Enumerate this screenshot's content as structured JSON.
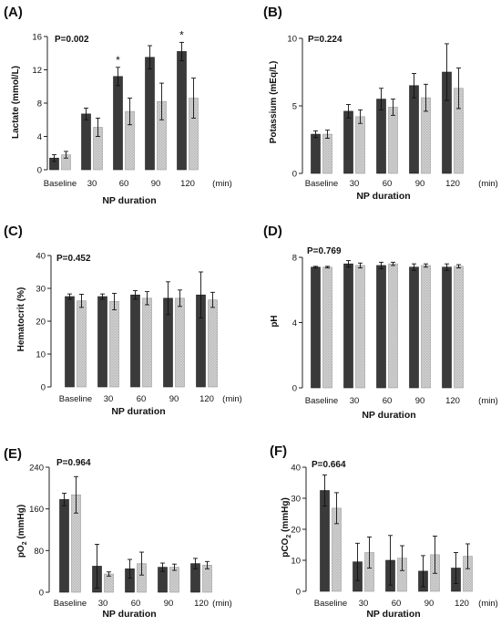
{
  "figure": {
    "background": "#ffffff"
  },
  "colors": {
    "control": "#3a3a3a",
    "treatment": "#cfcfcf",
    "axis": "#222222"
  },
  "chart_data": [
    {
      "panel": "(A)",
      "type": "bar",
      "categories": [
        "Baseline",
        "30",
        "60",
        "90",
        "120"
      ],
      "unit_label": "(min)",
      "xlabel": "NP duration",
      "ylabel": "Lactate (mmol/L)",
      "ylim": [
        0,
        16
      ],
      "yticks": [
        0,
        4,
        8,
        12,
        16
      ],
      "p_value": "P=0.002",
      "series": [
        {
          "values": [
            1.4,
            6.7,
            11.2,
            13.5,
            14.2
          ],
          "errors": [
            0.4,
            0.7,
            1.1,
            1.4,
            1.1
          ]
        },
        {
          "values": [
            1.8,
            5.1,
            7.0,
            8.2,
            8.6
          ],
          "errors": [
            0.4,
            1.1,
            1.6,
            2.2,
            2.4
          ]
        }
      ],
      "significance": [
        {
          "category": "60",
          "mark": "*"
        },
        {
          "category": "120",
          "mark": "*"
        }
      ]
    },
    {
      "panel": "(B)",
      "type": "bar",
      "categories": [
        "Baseline",
        "30",
        "60",
        "90",
        "120"
      ],
      "unit_label": "(min)",
      "xlabel": "NP duration",
      "ylabel": "Potassium (mEq/L)",
      "ylim": [
        0,
        10
      ],
      "yticks": [
        0,
        5,
        10
      ],
      "p_value": "P=0.224",
      "series": [
        {
          "values": [
            2.9,
            4.6,
            5.5,
            6.5,
            7.5
          ],
          "errors": [
            0.25,
            0.5,
            0.8,
            0.9,
            2.1
          ]
        },
        {
          "values": [
            2.9,
            4.2,
            4.9,
            5.6,
            6.3
          ],
          "errors": [
            0.3,
            0.5,
            0.6,
            1.0,
            1.5
          ]
        }
      ]
    },
    {
      "panel": "(C)",
      "type": "bar",
      "categories": [
        "Baseline",
        "30",
        "60",
        "90",
        "120"
      ],
      "unit_label": "(min)",
      "xlabel": "NP duration",
      "ylabel": "Hematocrit (%)",
      "ylim": [
        0,
        40
      ],
      "yticks": [
        0,
        10,
        20,
        30,
        40
      ],
      "p_value": "P=0.452",
      "series": [
        {
          "values": [
            27.5,
            27.5,
            28.0,
            27.0,
            28.0
          ],
          "errors": [
            0.8,
            0.8,
            1.3,
            5.0,
            7.0
          ]
        },
        {
          "values": [
            26.2,
            26.0,
            27.0,
            27.0,
            26.5
          ],
          "errors": [
            2.0,
            2.5,
            2.0,
            2.5,
            2.3
          ]
        }
      ]
    },
    {
      "panel": "(D)",
      "type": "bar",
      "categories": [
        "Baseline",
        "30",
        "60",
        "90",
        "120"
      ],
      "unit_label": "(min)",
      "xlabel": "NP duration",
      "ylabel": "pH",
      "ylim": [
        0,
        8
      ],
      "yticks": [
        0,
        4,
        8
      ],
      "p_value": "P=0.769",
      "series": [
        {
          "values": [
            7.4,
            7.6,
            7.5,
            7.4,
            7.4
          ],
          "errors": [
            0.05,
            0.2,
            0.2,
            0.2,
            0.2
          ]
        },
        {
          "values": [
            7.4,
            7.5,
            7.6,
            7.5,
            7.45
          ],
          "errors": [
            0.05,
            0.15,
            0.1,
            0.1,
            0.1
          ]
        }
      ]
    },
    {
      "panel": "(E)",
      "type": "bar",
      "categories": [
        "Baseline",
        "30",
        "60",
        "90",
        "120"
      ],
      "unit_label": "(min)",
      "xlabel": "NP duration",
      "ylabel_main": "pO",
      "ylabel_sub": "2",
      "ylabel_tail": " (mmHg)",
      "ylim": [
        0,
        240
      ],
      "yticks": [
        0,
        80,
        160,
        240
      ],
      "p_value": "P=0.964",
      "series": [
        {
          "values": [
            178,
            50,
            45,
            48,
            55
          ],
          "errors": [
            12,
            42,
            18,
            8,
            10
          ]
        },
        {
          "values": [
            187,
            35,
            55,
            48,
            52
          ],
          "errors": [
            35,
            4,
            22,
            6,
            7
          ]
        }
      ]
    },
    {
      "panel": "(F)",
      "type": "bar",
      "categories": [
        "Baseline",
        "30",
        "60",
        "90",
        "120"
      ],
      "unit_label": "(min)",
      "xlabel": "NP duration",
      "ylabel_main": "pCO",
      "ylabel_sub": "2",
      "ylabel_tail": " (mmHg)",
      "ylim": [
        0,
        40
      ],
      "yticks": [
        0,
        10,
        20,
        30,
        40
      ],
      "p_value": "P=0.664",
      "series": [
        {
          "values": [
            32.5,
            9.5,
            10.0,
            6.5,
            7.5
          ],
          "errors": [
            5.0,
            6.0,
            8.0,
            5.0,
            5.0
          ]
        },
        {
          "values": [
            26.8,
            12.5,
            10.7,
            11.8,
            11.3
          ],
          "errors": [
            5.0,
            5.0,
            4.0,
            6.0,
            4.0
          ]
        }
      ]
    }
  ]
}
